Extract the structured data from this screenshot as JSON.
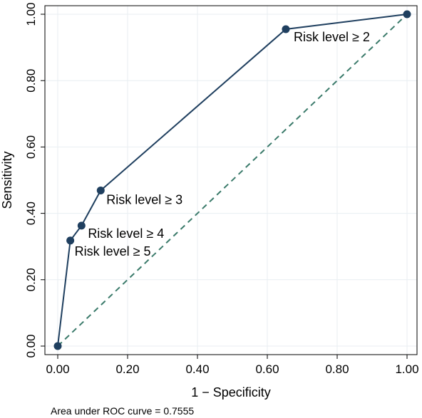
{
  "chart_data": {
    "type": "line",
    "xlabel": "1 − Specificity",
    "ylabel": "Sensitivity",
    "xlim": [
      0,
      1
    ],
    "ylim": [
      0,
      1
    ],
    "x_ticks": [
      "0.00",
      "0.20",
      "0.40",
      "0.60",
      "0.80",
      "1.00"
    ],
    "y_ticks": [
      "0.00",
      "0.20",
      "0.40",
      "0.60",
      "0.80",
      "1.00"
    ],
    "grid": true,
    "series": [
      {
        "points": [
          {
            "x": 0.0,
            "y": 0.0,
            "label": ""
          },
          {
            "x": 0.036,
            "y": 0.318,
            "label": "Risk level ≥ 5"
          },
          {
            "x": 0.068,
            "y": 0.363,
            "label": "Risk level ≥ 4"
          },
          {
            "x": 0.123,
            "y": 0.469,
            "label": "Risk level ≥ 3"
          },
          {
            "x": 0.653,
            "y": 0.955,
            "label": "Risk level ≥ 2"
          },
          {
            "x": 1.0,
            "y": 1.0,
            "label": ""
          }
        ]
      }
    ],
    "reference_line": {
      "from": [
        0,
        0
      ],
      "to": [
        1,
        1
      ],
      "style": "dashed"
    },
    "note": "Area under ROC curve = 0.7555",
    "colors": {
      "curve": "#1f3f5f",
      "reference": "#3a7a6a",
      "grid": "#e8eef2"
    }
  }
}
